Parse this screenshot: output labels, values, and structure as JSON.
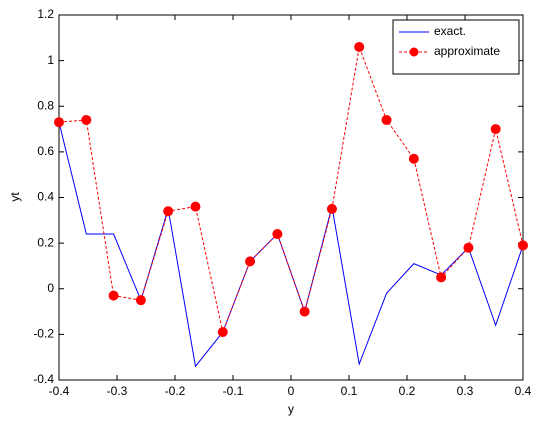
{
  "chart_data": {
    "type": "line",
    "xlabel": "y",
    "ylabel": "yt",
    "x": [
      -0.4,
      -0.3529,
      -0.3059,
      -0.2588,
      -0.2118,
      -0.1647,
      -0.1176,
      -0.0706,
      -0.0235,
      0.0235,
      0.0706,
      0.1176,
      0.1647,
      0.2118,
      0.2588,
      0.3059,
      0.3529,
      0.4
    ],
    "series": [
      {
        "name": "exact.",
        "color": "#0000ff",
        "style": "solid",
        "marker": false,
        "values": [
          0.73,
          0.24,
          0.24,
          -0.05,
          0.35,
          -0.34,
          -0.19,
          0.12,
          0.24,
          -0.1,
          0.36,
          -0.33,
          -0.02,
          0.11,
          0.06,
          0.18,
          -0.16,
          0.19
        ]
      },
      {
        "name": "approximate",
        "color": "#ff0000",
        "style": "dashed",
        "marker": true,
        "values": [
          0.73,
          0.74,
          -0.03,
          -0.05,
          0.34,
          0.36,
          -0.19,
          0.12,
          0.24,
          -0.1,
          0.35,
          1.06,
          0.74,
          0.57,
          0.05,
          0.18,
          0.7,
          0.19
        ]
      }
    ],
    "xlim": [
      -0.4,
      0.4
    ],
    "xticks": [
      -0.4,
      -0.3,
      -0.2,
      -0.1,
      0,
      0.1,
      0.2,
      0.3,
      0.4
    ],
    "ylim": [
      -0.4,
      1.2
    ],
    "yticks": [
      -0.4,
      -0.2,
      0,
      0.2,
      0.4,
      0.6,
      0.8,
      1,
      1.2
    ],
    "legend": "upper right",
    "grid": false
  }
}
